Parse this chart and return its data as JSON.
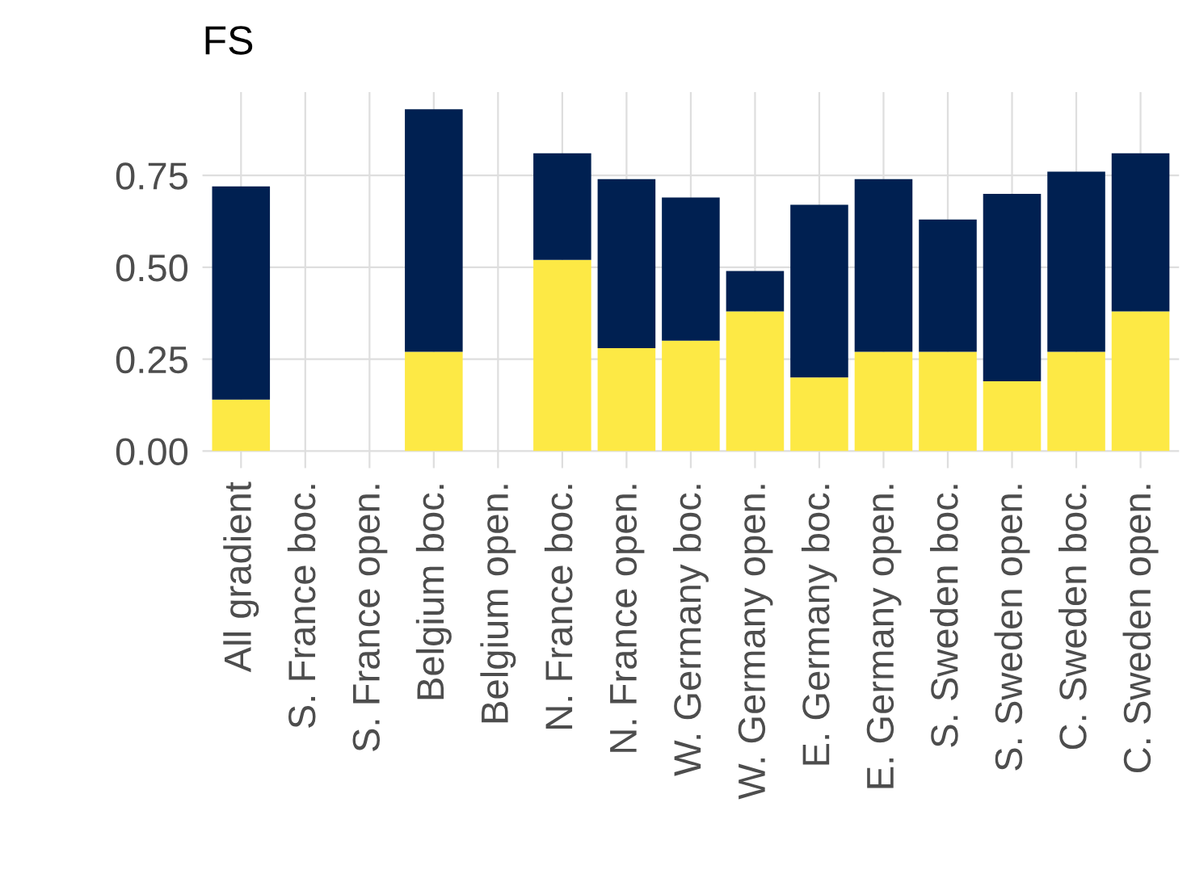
{
  "chart_data": {
    "type": "bar",
    "title": "FS",
    "stacked": true,
    "grid": true,
    "legend": false,
    "categories": [
      "All gradient",
      "S. France boc.",
      "S. France open.",
      "Belgium boc.",
      "Belgium open.",
      "N. France boc.",
      "N. France open.",
      "W. Germany boc.",
      "W. Germany open.",
      "E. Germany boc.",
      "E. Germany open.",
      "S. Sweden boc.",
      "S. Sweden open.",
      "C. Sweden boc.",
      "C. Sweden open."
    ],
    "series": [
      {
        "color": "#fde945",
        "values": [
          0.14,
          null,
          null,
          0.27,
          null,
          0.52,
          0.28,
          0.3,
          0.38,
          0.2,
          0.27,
          0.27,
          0.19,
          0.27,
          0.38
        ]
      },
      {
        "color": "#002051",
        "values": [
          0.58,
          null,
          null,
          0.66,
          null,
          0.29,
          0.46,
          0.39,
          0.11,
          0.47,
          0.47,
          0.36,
          0.51,
          0.49,
          0.43
        ]
      }
    ],
    "ylim": [
      -0.0465,
      0.9765
    ],
    "yticks": [
      {
        "value": 0,
        "label": "0.00"
      },
      {
        "value": 0.25,
        "label": "0.25"
      },
      {
        "value": 0.5,
        "label": "0.50"
      },
      {
        "value": 0.75,
        "label": "0.75"
      }
    ]
  }
}
